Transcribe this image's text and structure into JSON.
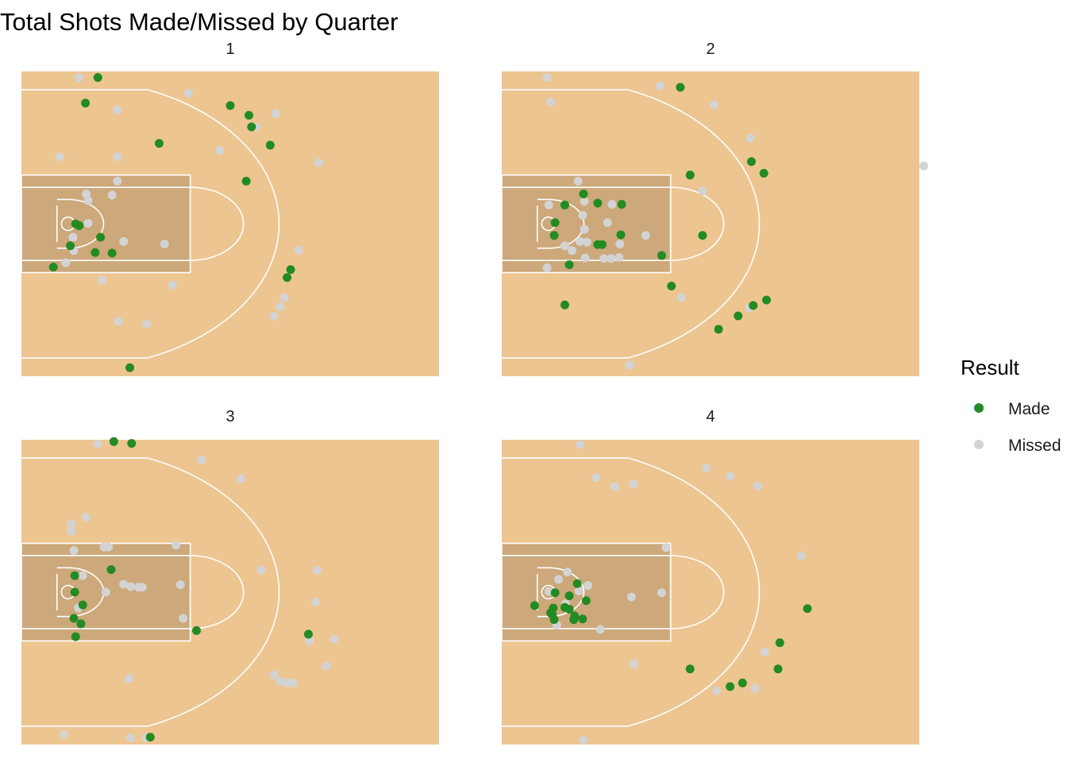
{
  "chart_data": {
    "type": "scatter",
    "title": "Total Shots Made/Missed by Quarter",
    "xlabel": "",
    "ylabel": "",
    "xlim": [
      0,
      47
    ],
    "ylim": [
      -25,
      25
    ],
    "facet_by": "Quarter",
    "legend": {
      "title": "Result",
      "placement": "right",
      "entries": [
        {
          "name": "Made",
          "color": "#228B22"
        },
        {
          "name": "Missed",
          "color": "#D3D3D3"
        }
      ]
    },
    "colors": {
      "court_fill": "#EDC591",
      "paint_fill": "#CCA87A",
      "court_lines": "#FFFFFF"
    },
    "panels": [
      {
        "label": "1",
        "made": [
          [
            8.6,
            24.0
          ],
          [
            7.2,
            19.8
          ],
          [
            15.5,
            13.2
          ],
          [
            23.5,
            19.4
          ],
          [
            25.6,
            17.8
          ],
          [
            25.9,
            15.9
          ],
          [
            28.0,
            12.9
          ],
          [
            25.3,
            7.0
          ],
          [
            6.1,
            0.0
          ],
          [
            6.5,
            -0.3
          ],
          [
            8.9,
            -2.2
          ],
          [
            5.5,
            -3.6
          ],
          [
            8.3,
            -4.7
          ],
          [
            10.2,
            -4.8
          ],
          [
            3.6,
            -7.1
          ],
          [
            30.3,
            -7.5
          ],
          [
            29.9,
            -8.8
          ],
          [
            12.2,
            -23.6
          ]
        ],
        "missed": [
          [
            6.5,
            24.0
          ],
          [
            10.8,
            18.7
          ],
          [
            18.8,
            21.4
          ],
          [
            28.6,
            18.1
          ],
          [
            26.4,
            15.9
          ],
          [
            22.3,
            12.0
          ],
          [
            4.3,
            11.0
          ],
          [
            10.8,
            11.0
          ],
          [
            33.5,
            10.0
          ],
          [
            10.8,
            7.0
          ],
          [
            7.3,
            4.9
          ],
          [
            10.2,
            4.7
          ],
          [
            7.5,
            3.8
          ],
          [
            7.5,
            0.1
          ],
          [
            5.8,
            -2.2
          ],
          [
            11.5,
            -2.9
          ],
          [
            16.1,
            -3.3
          ],
          [
            31.2,
            -4.3
          ],
          [
            5.9,
            -4.4
          ],
          [
            5.0,
            -6.4
          ],
          [
            9.1,
            -9.2
          ],
          [
            17.0,
            -10.0
          ],
          [
            29.6,
            -12.1
          ],
          [
            29.1,
            -13.6
          ],
          [
            28.4,
            -15.2
          ],
          [
            10.9,
            -16.0
          ],
          [
            14.1,
            -16.4
          ]
        ]
      },
      {
        "label": "2",
        "made": [
          [
            20.1,
            22.4
          ],
          [
            28.1,
            10.2
          ],
          [
            29.5,
            8.3
          ],
          [
            21.2,
            8.0
          ],
          [
            9.2,
            4.9
          ],
          [
            10.8,
            3.4
          ],
          [
            13.5,
            3.2
          ],
          [
            7.1,
            3.1
          ],
          [
            6.0,
            0.2
          ],
          [
            5.9,
            -1.9
          ],
          [
            13.4,
            -1.8
          ],
          [
            10.8,
            -3.4
          ],
          [
            11.3,
            -3.4
          ],
          [
            22.6,
            -1.9
          ],
          [
            18.0,
            -5.2
          ],
          [
            7.6,
            -6.7
          ],
          [
            19.1,
            -10.2
          ],
          [
            29.8,
            -12.5
          ],
          [
            28.3,
            -13.4
          ],
          [
            26.6,
            -15.1
          ],
          [
            24.4,
            -17.3
          ],
          [
            7.1,
            -13.3
          ]
        ],
        "missed": [
          [
            5.1,
            24.0
          ],
          [
            17.8,
            22.6
          ],
          [
            5.5,
            20.0
          ],
          [
            23.9,
            19.5
          ],
          [
            28.0,
            14.1
          ],
          [
            8.6,
            7.0
          ],
          [
            22.6,
            5.4
          ],
          [
            5.3,
            3.1
          ],
          [
            9.3,
            3.7
          ],
          [
            12.4,
            3.2
          ],
          [
            9.1,
            1.4
          ],
          [
            11.9,
            0.2
          ],
          [
            9.3,
            -0.9
          ],
          [
            16.2,
            -1.9
          ],
          [
            8.8,
            -2.9
          ],
          [
            9.6,
            -3.0
          ],
          [
            13.3,
            -3.3
          ],
          [
            7.1,
            -3.6
          ],
          [
            7.9,
            -4.4
          ],
          [
            9.4,
            -5.6
          ],
          [
            11.5,
            -5.7
          ],
          [
            12.3,
            -5.7
          ],
          [
            13.2,
            -5.5
          ],
          [
            5.1,
            -7.2
          ],
          [
            20.2,
            -12.1
          ],
          [
            27.9,
            -13.8
          ],
          [
            14.4,
            -23.2
          ],
          [
            47.5,
            9.5
          ]
        ]
      },
      {
        "label": "3",
        "made": [
          [
            10.4,
            24.7
          ],
          [
            12.4,
            24.4
          ],
          [
            10.1,
            3.7
          ],
          [
            6.0,
            2.7
          ],
          [
            6.0,
            0.0
          ],
          [
            6.9,
            -2.1
          ],
          [
            5.9,
            -4.3
          ],
          [
            6.7,
            -5.2
          ],
          [
            6.1,
            -7.3
          ],
          [
            19.7,
            -6.3
          ],
          [
            32.3,
            -6.9
          ],
          [
            14.5,
            -23.8
          ]
        ],
        "missed": [
          [
            8.6,
            24.3
          ],
          [
            20.3,
            21.7
          ],
          [
            24.7,
            18.6
          ],
          [
            7.3,
            12.3
          ],
          [
            5.6,
            11.2
          ],
          [
            5.6,
            10.0
          ],
          [
            17.4,
            7.7
          ],
          [
            9.3,
            7.4
          ],
          [
            9.8,
            7.4
          ],
          [
            5.9,
            6.8
          ],
          [
            27.0,
            3.6
          ],
          [
            33.3,
            3.6
          ],
          [
            6.9,
            2.7
          ],
          [
            11.5,
            1.3
          ],
          [
            12.3,
            0.9
          ],
          [
            13.2,
            0.8
          ],
          [
            13.6,
            0.8
          ],
          [
            17.9,
            1.2
          ],
          [
            9.5,
            0.0
          ],
          [
            33.1,
            -1.6
          ],
          [
            6.4,
            -2.6
          ],
          [
            18.2,
            -4.3
          ],
          [
            32.4,
            -8.0
          ],
          [
            35.2,
            -7.7
          ],
          [
            34.3,
            -12.1
          ],
          [
            28.4,
            -13.6
          ],
          [
            29.1,
            -14.6
          ],
          [
            29.9,
            -14.9
          ],
          [
            30.6,
            -14.9
          ],
          [
            12.1,
            -14.2
          ],
          [
            4.8,
            -23.3
          ],
          [
            12.3,
            -23.9
          ],
          [
            14.0,
            -23.9
          ]
        ]
      },
      {
        "label": "4",
        "made": [
          [
            8.5,
            1.4
          ],
          [
            6.0,
            -0.1
          ],
          [
            7.6,
            -0.6
          ],
          [
            9.5,
            -1.4
          ],
          [
            3.7,
            -2.2
          ],
          [
            5.8,
            -2.6
          ],
          [
            7.1,
            -2.5
          ],
          [
            7.6,
            -2.8
          ],
          [
            5.5,
            -3.4
          ],
          [
            5.7,
            -3.7
          ],
          [
            5.9,
            -4.5
          ],
          [
            8.1,
            -4.5
          ],
          [
            9.1,
            -4.4
          ],
          [
            8.2,
            -3.9
          ],
          [
            34.4,
            -2.7
          ],
          [
            31.3,
            -8.3
          ],
          [
            31.1,
            -12.6
          ],
          [
            21.2,
            -12.6
          ],
          [
            27.1,
            -14.9
          ],
          [
            25.7,
            -15.5
          ]
        ],
        "missed": [
          [
            8.8,
            24.2
          ],
          [
            23.0,
            20.3
          ],
          [
            25.7,
            19.0
          ],
          [
            28.8,
            17.4
          ],
          [
            10.6,
            18.8
          ],
          [
            12.7,
            17.3
          ],
          [
            14.8,
            17.7
          ],
          [
            18.5,
            7.3
          ],
          [
            33.7,
            6.0
          ],
          [
            7.4,
            3.3
          ],
          [
            6.4,
            2.1
          ],
          [
            9.7,
            1.1
          ],
          [
            5.3,
            0.1
          ],
          [
            8.7,
            0.2
          ],
          [
            14.6,
            -0.8
          ],
          [
            18.0,
            -0.1
          ],
          [
            7.2,
            -1.9
          ],
          [
            6.2,
            -5.4
          ],
          [
            11.1,
            -6.1
          ],
          [
            29.6,
            -9.8
          ],
          [
            14.9,
            -11.8
          ],
          [
            24.2,
            -16.2
          ],
          [
            28.5,
            -15.8
          ],
          [
            9.2,
            -24.3
          ]
        ]
      }
    ]
  }
}
